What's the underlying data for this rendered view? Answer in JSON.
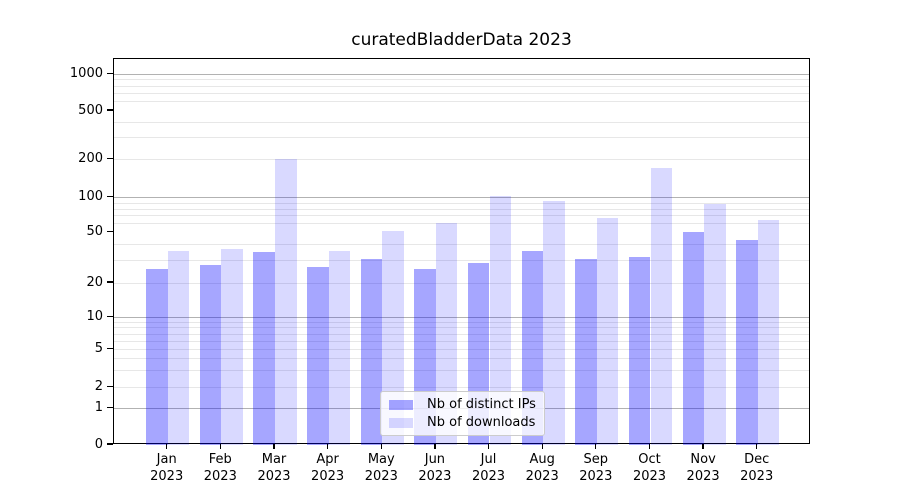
{
  "chart_data": {
    "type": "bar",
    "title": "curatedBladderData 2023",
    "categories": [
      "Jan 2023",
      "Feb 2023",
      "Mar 2023",
      "Apr 2023",
      "May 2023",
      "Jun 2023",
      "Jul 2023",
      "Aug 2023",
      "Sep 2023",
      "Oct 2023",
      "Nov 2023",
      "Dec 2023"
    ],
    "categories_line1": [
      "Jan",
      "Feb",
      "Mar",
      "Apr",
      "May",
      "Jun",
      "Jul",
      "Aug",
      "Sep",
      "Oct",
      "Nov",
      "Dec"
    ],
    "categories_line2": [
      "2023",
      "2023",
      "2023",
      "2023",
      "2023",
      "2023",
      "2023",
      "2023",
      "2023",
      "2023",
      "2023",
      "2023"
    ],
    "series": [
      {
        "name": "Nb of distinct IPs",
        "color": "rgba(0,0,255,0.35)",
        "solid_color": "#a6a6f8",
        "values": [
          26,
          28,
          35,
          27,
          31,
          26,
          29,
          36,
          31,
          32,
          51,
          44
        ]
      },
      {
        "name": "Nb of downloads",
        "color": "rgba(0,0,255,0.15)",
        "solid_color": "#d9d9fa",
        "values": [
          36,
          37,
          200,
          36,
          52,
          61,
          103,
          94,
          67,
          172,
          88,
          64
        ]
      }
    ],
    "ylabel": "",
    "xlabel": "",
    "yticks": [
      0,
      1,
      2,
      5,
      10,
      20,
      50,
      100,
      200,
      500,
      1000
    ],
    "ytick_labels": [
      "0",
      "1",
      "2",
      "5",
      "10",
      "20",
      "50",
      "100",
      "200",
      "500",
      "1000"
    ],
    "minor_gridline_values": [
      2,
      3,
      4,
      5,
      6,
      7,
      8,
      9,
      20,
      30,
      40,
      60,
      70,
      80,
      90,
      200,
      300,
      400,
      600,
      700,
      800,
      900
    ],
    "major_gridline_values": [
      1,
      10,
      100,
      1000
    ],
    "scale": "symlog",
    "ylim": [
      0,
      1000
    ],
    "grid": true,
    "legend_position": "inside lower center",
    "background_color": "#ffffff",
    "grid_major_color": "#b2b2b2",
    "grid_minor_color": "#e7e7e7"
  }
}
